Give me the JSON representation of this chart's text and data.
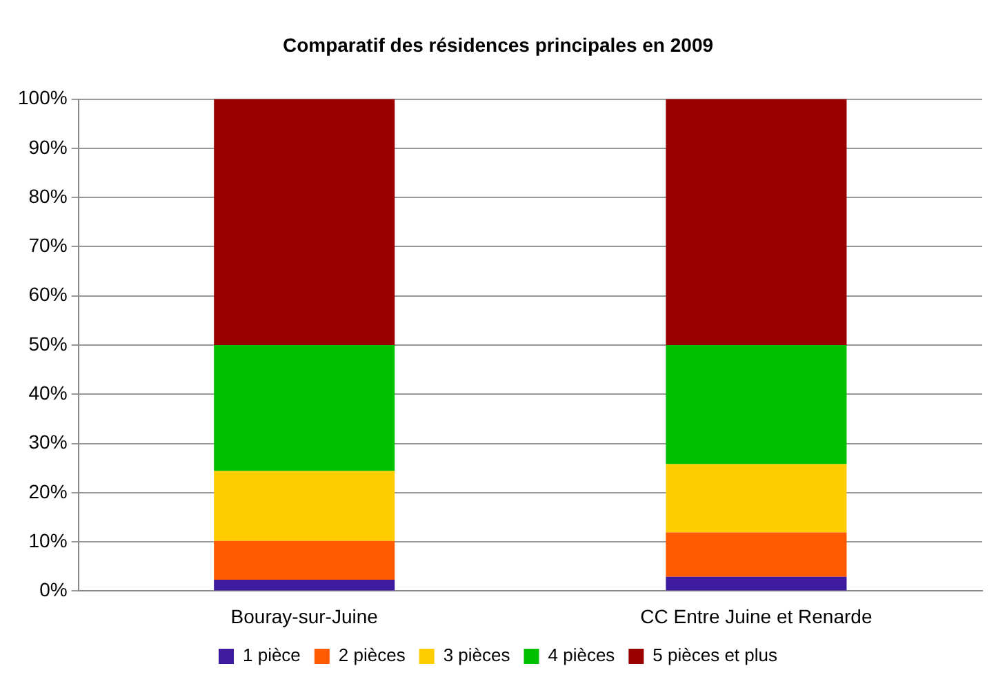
{
  "chart_data": {
    "type": "bar",
    "title": "Comparatif des résidences principales en 2009",
    "stacked": true,
    "categories": [
      "Bouray-sur-Juine",
      "CC Entre Juine et Renarde"
    ],
    "series": [
      {
        "name": "1 pièce",
        "color": "#3d1a9e",
        "values": [
          2.3,
          2.9
        ]
      },
      {
        "name": "2 pièces",
        "color": "#ff5a00",
        "values": [
          7.9,
          9.0
        ]
      },
      {
        "name": "3 pièces",
        "color": "#ffcc00",
        "values": [
          14.2,
          13.9
        ]
      },
      {
        "name": "4 pièces",
        "color": "#00c000",
        "values": [
          25.6,
          24.2
        ]
      },
      {
        "name": "5 pièces et plus",
        "color": "#990000",
        "values": [
          50.0,
          50.0
        ]
      }
    ],
    "ylim": [
      0,
      100
    ],
    "yticks": [
      {
        "value": 0,
        "label": "0%"
      },
      {
        "value": 10,
        "label": "10%"
      },
      {
        "value": 20,
        "label": "20%"
      },
      {
        "value": 30,
        "label": "30%"
      },
      {
        "value": 40,
        "label": "40%"
      },
      {
        "value": 50,
        "label": "50%"
      },
      {
        "value": 60,
        "label": "60%"
      },
      {
        "value": 70,
        "label": "70%"
      },
      {
        "value": 80,
        "label": "80%"
      },
      {
        "value": 90,
        "label": "90%"
      },
      {
        "value": 100,
        "label": "100%"
      }
    ],
    "grid": "y",
    "legend": "bottom"
  }
}
